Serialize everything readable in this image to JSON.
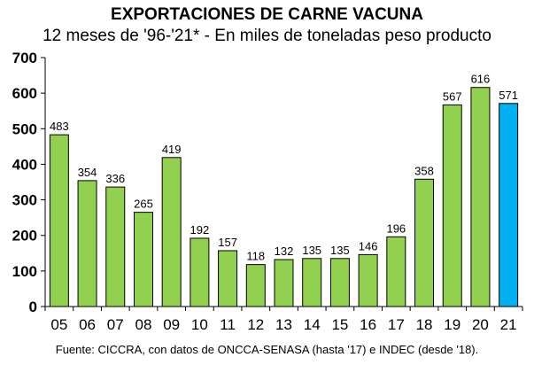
{
  "chart_data": {
    "type": "bar",
    "title": "EXPORTACIONES DE CARNE VACUNA",
    "subtitle": "12 meses de '96-'21* - En miles de toneladas peso producto",
    "categories": [
      "05",
      "06",
      "07",
      "08",
      "09",
      "10",
      "11",
      "12",
      "13",
      "14",
      "15",
      "16",
      "17",
      "18",
      "19",
      "20",
      "21"
    ],
    "values": [
      483,
      354,
      336,
      265,
      419,
      192,
      157,
      118,
      132,
      135,
      135,
      146,
      196,
      358,
      567,
      616,
      571
    ],
    "colors": {
      "default": "#92d050",
      "highlight": "#00b0f0"
    },
    "highlight_index": 16,
    "ylim": [
      0,
      700
    ],
    "yticks": [
      0,
      100,
      200,
      300,
      400,
      500,
      600,
      700
    ],
    "xlabel": "",
    "ylabel": "",
    "grid": false,
    "source": "Fuente: CICCRA, con datos de ONCCA-SENASA (hasta '17) e INDEC (desde '18)."
  }
}
